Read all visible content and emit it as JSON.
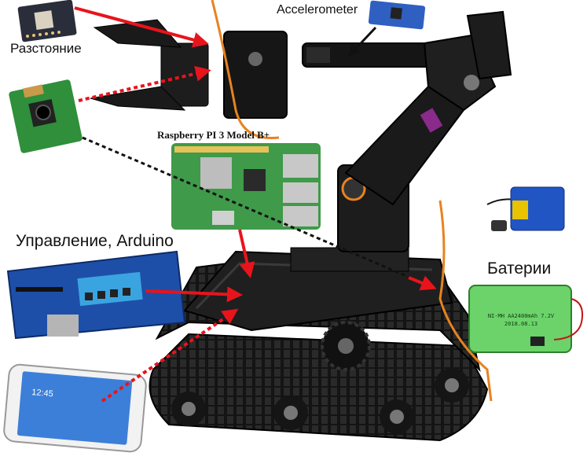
{
  "labels": {
    "distance": "Разстояние",
    "accelerometer": "Accelerometer",
    "raspberry": "Raspberry PI 3 Model B+",
    "control": "Управление, Arduino",
    "batteries": "Батерии"
  },
  "printed": {
    "battery_pack_text": "NI-MH AA2400mAh 7.2V",
    "battery_pack_date": "2018.08.13",
    "phone_time": "12:45"
  },
  "colors": {
    "arrow": "#e8141c",
    "pcb_green": "#2f8f3a",
    "arduino_blue": "#1e4fa8",
    "battery_green": "#6bd36a",
    "robot_black": "#1a1a1a",
    "wire_orange": "#e7831f"
  }
}
